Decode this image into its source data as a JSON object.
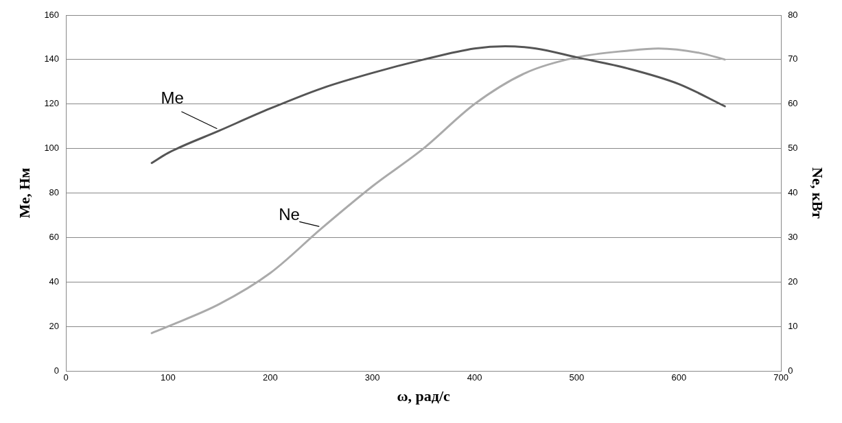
{
  "chart_data": {
    "type": "line",
    "xlabel": "ω, рад/с",
    "ylabel": "Me, Нм",
    "y2label": "Ne, кВт",
    "xlim": [
      0,
      700
    ],
    "xticks": [
      0,
      100,
      200,
      300,
      400,
      500,
      600,
      700
    ],
    "ylim": [
      0,
      160
    ],
    "yticks": [
      0,
      20,
      40,
      60,
      80,
      100,
      120,
      140,
      160
    ],
    "y2lim": [
      0,
      80
    ],
    "y2ticks": [
      0,
      10,
      20,
      30,
      40,
      50,
      60,
      70,
      80
    ],
    "grid": "y",
    "legend": false,
    "series": [
      {
        "name": "Me",
        "color": "#555555",
        "x": [
          84,
          100,
          150,
          200,
          250,
          300,
          350,
          400,
          430,
          460,
          500,
          550,
          600,
          645
        ],
        "values": [
          93.5,
          98,
          108,
          118,
          127,
          134,
          140,
          145,
          146,
          145,
          141,
          136,
          129,
          119
        ]
      },
      {
        "name": "Ne",
        "color": "#aaaaaa",
        "axis": "y2",
        "x": [
          84,
          100,
          150,
          200,
          250,
          300,
          350,
          400,
          450,
          500,
          550,
          580,
          620,
          645
        ],
        "values": [
          8.5,
          10,
          15,
          22,
          32,
          41.5,
          50,
          60,
          67,
          70.5,
          72,
          72.5,
          71.5,
          70
        ]
      }
    ]
  }
}
